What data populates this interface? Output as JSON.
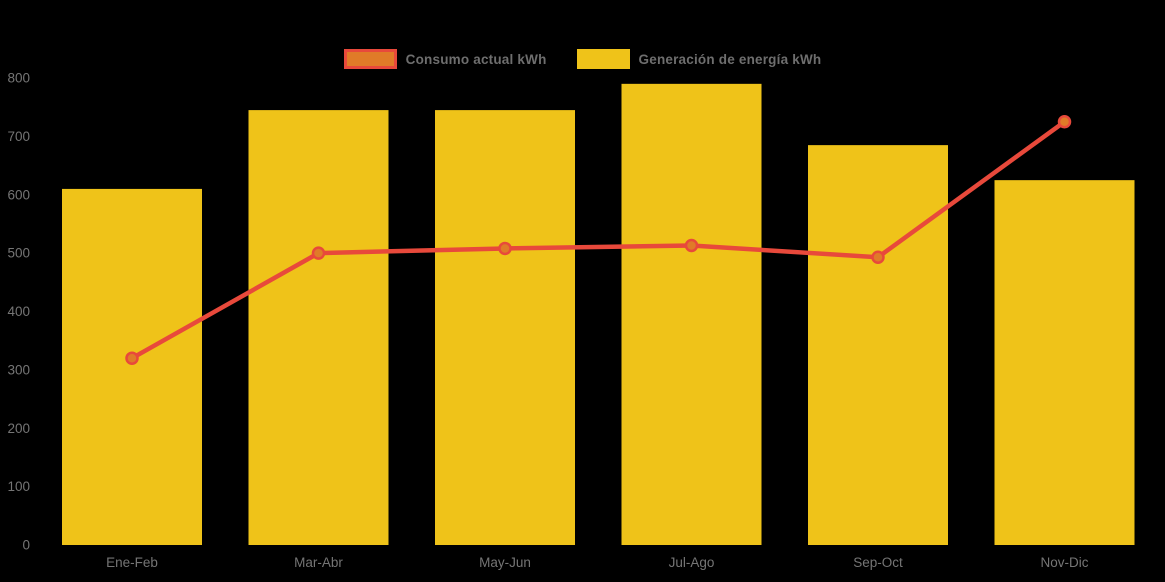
{
  "chart_data": {
    "type": "combo",
    "title": "",
    "xlabel": "",
    "ylabel": "",
    "categories": [
      "Ene-Feb",
      "Mar-Abr",
      "May-Jun",
      "Jul-Ago",
      "Sep-Oct",
      "Nov-Dic"
    ],
    "series": [
      {
        "name": "Consumo actual kWh",
        "type": "line",
        "values": [
          320,
          500,
          508,
          513,
          493,
          725
        ],
        "color": "#E8493B",
        "marker_fill": "#E07B28"
      },
      {
        "name": "Generación de energía kWh",
        "type": "bar",
        "values": [
          610,
          745,
          745,
          790,
          685,
          625
        ],
        "color": "#EFC319"
      }
    ],
    "ylim": [
      0,
      800
    ],
    "yticks": [
      0,
      100,
      200,
      300,
      400,
      500,
      600,
      700,
      800
    ],
    "grid": false,
    "legend_position": "top-center",
    "axis_text_color": "#757575",
    "background_color": "#000000"
  }
}
